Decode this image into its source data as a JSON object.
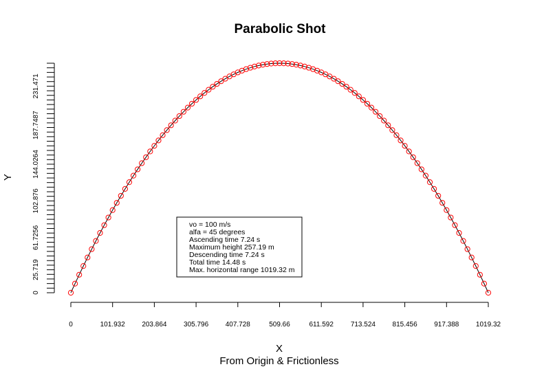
{
  "chart_data": {
    "type": "scatter",
    "title": "Parabolic Shot",
    "xlabel": "X",
    "xlabel_sub": "From Origin & Frictionless",
    "ylabel": "Y",
    "xlim": [
      0,
      1019.32
    ],
    "ylim": [
      0,
      257.19
    ],
    "x_ticks": [
      0,
      101.932,
      203.864,
      305.796,
      407.728,
      509.66,
      611.592,
      713.524,
      815.456,
      917.388,
      1019.32
    ],
    "x_tick_labels": [
      "0",
      "101.932",
      "203.864",
      "305.796",
      "407.728",
      "509.66",
      "611.592",
      "713.524",
      "815.456",
      "917.388",
      "1019.32"
    ],
    "y_tick_labels": [
      "0",
      "25.719",
      "61.7256",
      "102.876",
      "144.0264",
      "187.7487",
      "231.471"
    ],
    "y_tick_values": [
      0,
      25.719,
      61.7256,
      102.876,
      144.0264,
      187.7487,
      231.471
    ],
    "y_minor_tick_step": 5.1438,
    "series": [
      {
        "type": "line+points",
        "initial_velocity": 100,
        "angle_degrees": 45,
        "x_max": 1019.32,
        "y_max": 257.19,
        "n_points": 101,
        "color": "#ff0000",
        "line_color": "#000000"
      }
    ],
    "legend": {
      "placement": "lower-center",
      "entries": [
        "vo = 100 m/s",
        "alfa = 45 degrees",
        "Ascending time 7.24 s",
        "Maximum height 257.19 m",
        "Descending time 7.24 s",
        "Total time 14.48 s",
        "Max. horizontal range 1019.32 m"
      ]
    }
  }
}
